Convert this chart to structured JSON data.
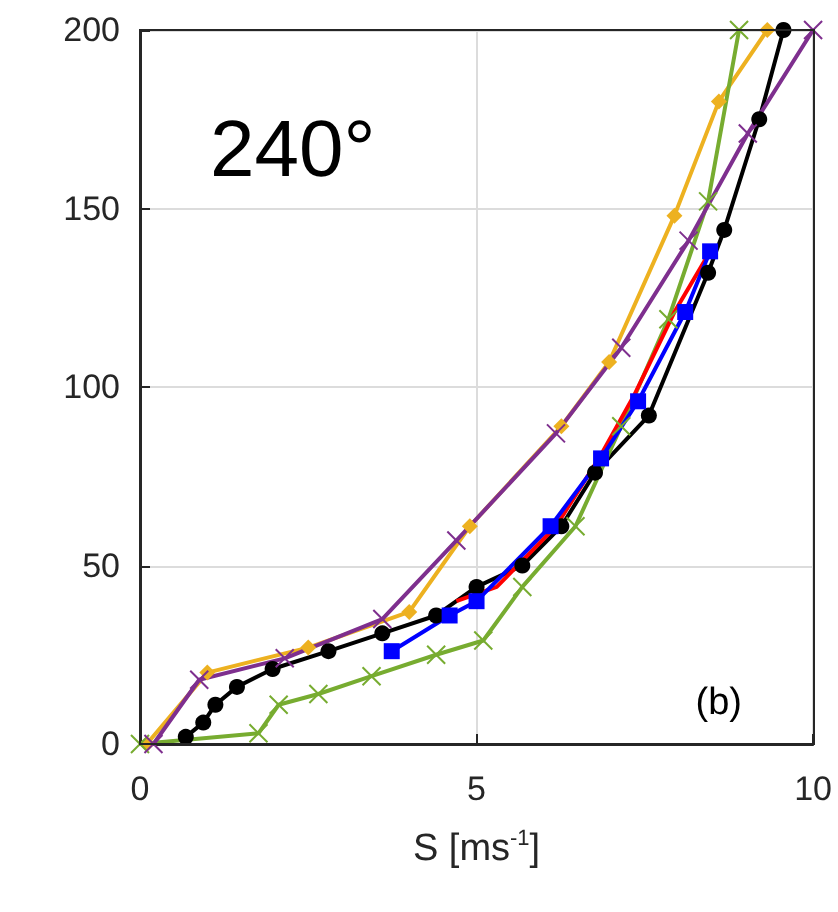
{
  "chart_data": {
    "type": "line",
    "xlabel": "S [ms$^{-1}$]",
    "annotations": [
      "240°",
      "(b)"
    ],
    "xlim": [
      0,
      10
    ],
    "xticks": [
      0,
      5,
      10
    ],
    "ylim": [
      0,
      200
    ],
    "yticks": [
      0,
      50,
      100,
      150,
      200
    ],
    "grid": true,
    "line_style": "solid",
    "series": [
      {
        "color": "#000000",
        "marker": "circle",
        "x": [
          0.68,
          0.94,
          1.12,
          1.44,
          1.97,
          2.8,
          3.6,
          4.4,
          5.0,
          5.68,
          6.26,
          6.76,
          7.56,
          8.44,
          8.68,
          9.2,
          9.56
        ],
        "values": [
          2,
          6,
          11,
          16,
          21,
          26,
          31,
          36,
          44,
          50,
          61,
          76,
          92,
          132,
          144,
          175,
          200
        ]
      },
      {
        "color": "#edb120",
        "marker": "diamond",
        "x": [
          0.1,
          1.0,
          2.5,
          4.0,
          4.9,
          6.26,
          6.97,
          7.94,
          8.6,
          9.32
        ],
        "values": [
          0,
          20,
          27,
          37,
          61,
          89,
          107,
          148,
          180,
          200
        ]
      },
      {
        "color": "#77ac30",
        "marker": "cross",
        "x": [
          0,
          1.76,
          2.06,
          2.65,
          3.44,
          4.4,
          5.1,
          5.68,
          6.47,
          7.15,
          7.85,
          8.44,
          8.9
        ],
        "values": [
          0,
          3,
          11,
          14,
          19,
          25,
          29,
          44,
          61,
          89,
          119,
          152,
          200
        ]
      },
      {
        "color": "#7e2f8e",
        "marker": "cross",
        "x": [
          0.2,
          0.88,
          2.15,
          3.6,
          4.7,
          6.18,
          7.15,
          8.15,
          9.03,
          10.0
        ],
        "values": [
          0,
          18,
          24,
          35,
          57,
          87,
          111,
          141,
          171,
          200
        ]
      },
      {
        "color": "#ff0000",
        "marker": "none",
        "x": [
          4.7,
          5.3,
          6.18,
          6.85,
          7.35,
          7.94,
          8.44
        ],
        "values": [
          40,
          44,
          61,
          81,
          98,
          121,
          137
        ]
      },
      {
        "color": "#0000ff",
        "marker": "square",
        "x": [
          3.74,
          4.6,
          5.0,
          6.1,
          6.85,
          7.4,
          8.1,
          8.47
        ],
        "values": [
          26,
          36,
          40,
          61,
          80,
          96,
          121,
          138
        ]
      }
    ]
  }
}
